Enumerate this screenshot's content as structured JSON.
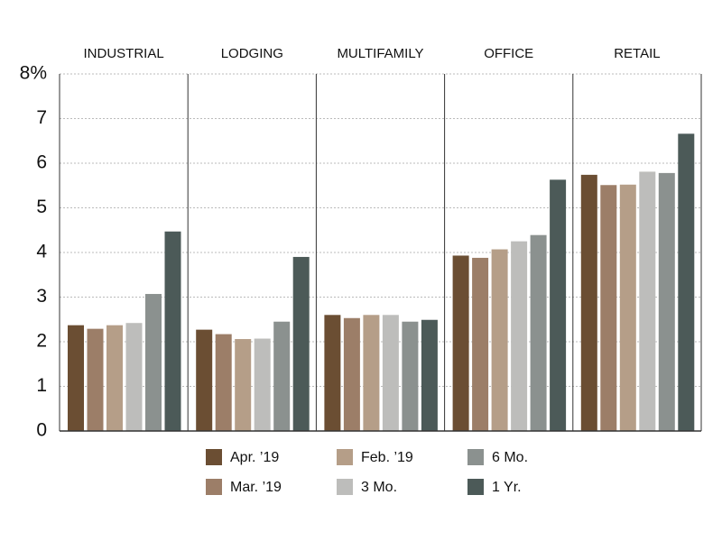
{
  "chart_data": {
    "type": "bar",
    "categories": [
      "INDUSTRIAL",
      "LODGING",
      "MULTIFAMILY",
      "OFFICE",
      "RETAIL"
    ],
    "series": [
      {
        "name": "Apr. ’19",
        "color": "#6b4e33",
        "values": [
          2.37,
          2.27,
          2.6,
          3.93,
          5.74
        ]
      },
      {
        "name": "Mar. ’19",
        "color": "#9c7e68",
        "values": [
          2.29,
          2.17,
          2.53,
          3.88,
          5.51
        ]
      },
      {
        "name": "Feb. ’19",
        "color": "#b59e88",
        "values": [
          2.37,
          2.06,
          2.6,
          4.07,
          5.52
        ]
      },
      {
        "name": "3 Mo.",
        "color": "#bdbdbb",
        "values": [
          2.42,
          2.07,
          2.6,
          4.25,
          5.81
        ]
      },
      {
        "name": "6 Mo.",
        "color": "#8b918f",
        "values": [
          3.07,
          2.45,
          2.45,
          4.39,
          5.78
        ]
      },
      {
        "name": "1 Yr.",
        "color": "#4c5a58",
        "values": [
          4.47,
          3.9,
          2.49,
          5.63,
          6.66
        ]
      }
    ],
    "ylim": [
      0,
      8
    ],
    "yticks": [
      0,
      1,
      2,
      3,
      4,
      5,
      6,
      7,
      {
        "value": 8,
        "label": "8%"
      }
    ],
    "grid": true
  }
}
